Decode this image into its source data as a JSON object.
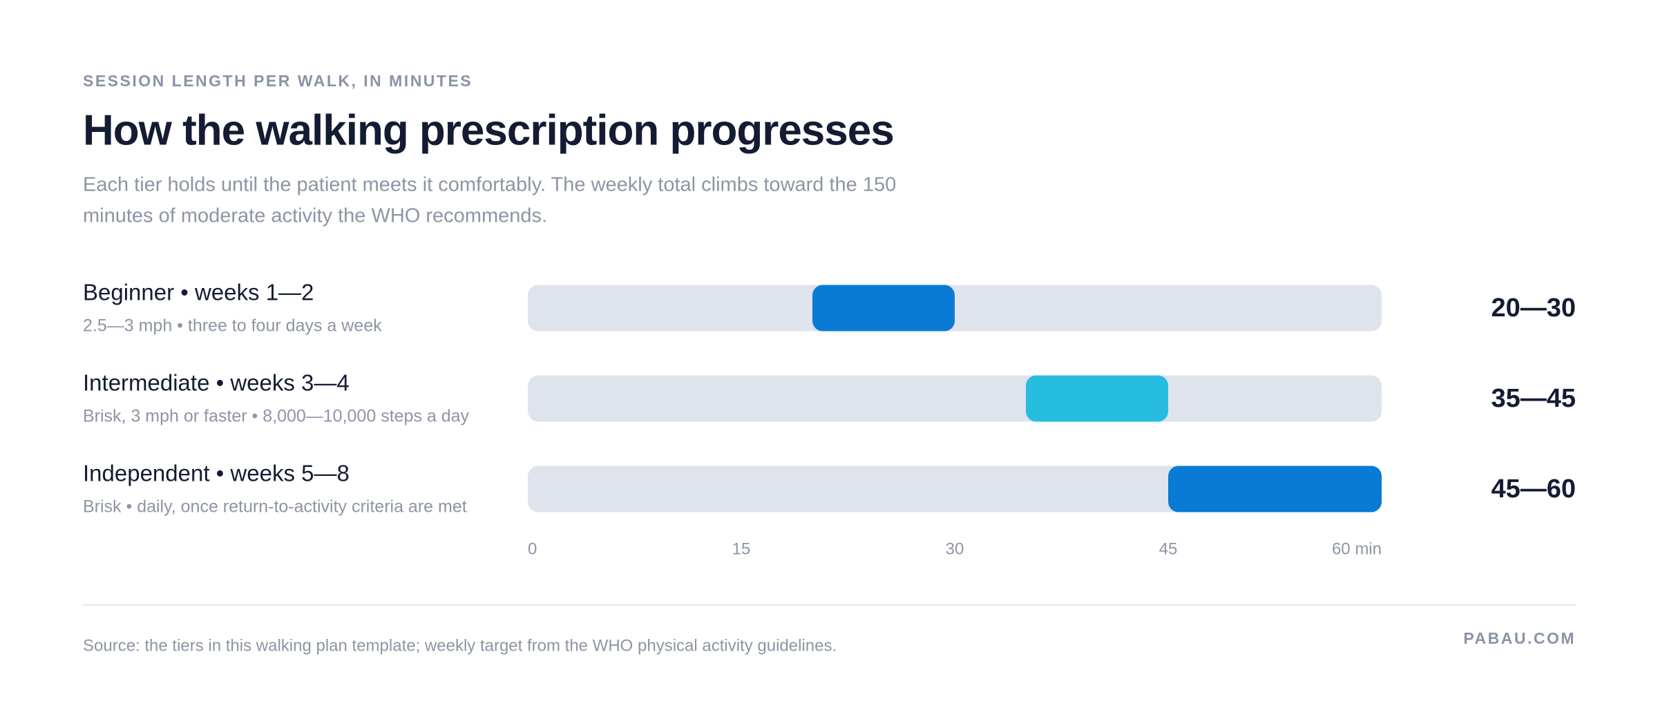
{
  "chart_data": {
    "type": "range",
    "overline": "SESSION LENGTH PER WALK, IN MINUTES",
    "title": "How the walking prescription progresses",
    "subtitle": [
      "Each tier holds until the patient meets it comfortably. The weekly total climbs toward the 150",
      "minutes of moderate activity the WHO recommends."
    ],
    "categories": [
      "Beginner • weeks 1—2",
      "Intermediate • weeks 3—4",
      "Independent • weeks 5—8"
    ],
    "descriptions": [
      "2.5—3 mph • three to four days a week",
      "Brisk, 3 mph or faster • 8,000—10,000 steps a day",
      "Brisk • daily, once return-to-activity criteria are met"
    ],
    "low": [
      20,
      35,
      45
    ],
    "high": [
      30,
      45,
      60
    ],
    "value_labels": [
      "20—30",
      "35—45",
      "45—60"
    ],
    "colors": [
      "#0a7bd4",
      "#27bde0",
      "#0a7bd4"
    ],
    "track_color": "#dfe3ec",
    "xlim": [
      0,
      60
    ],
    "xticks": [
      0,
      15,
      30,
      45,
      {
        "value": 60,
        "label": "60 min"
      }
    ],
    "source": "Source: the tiers in this walking plan template; weekly target from the WHO physical activity guidelines.",
    "brand": "PABAU.COM"
  }
}
